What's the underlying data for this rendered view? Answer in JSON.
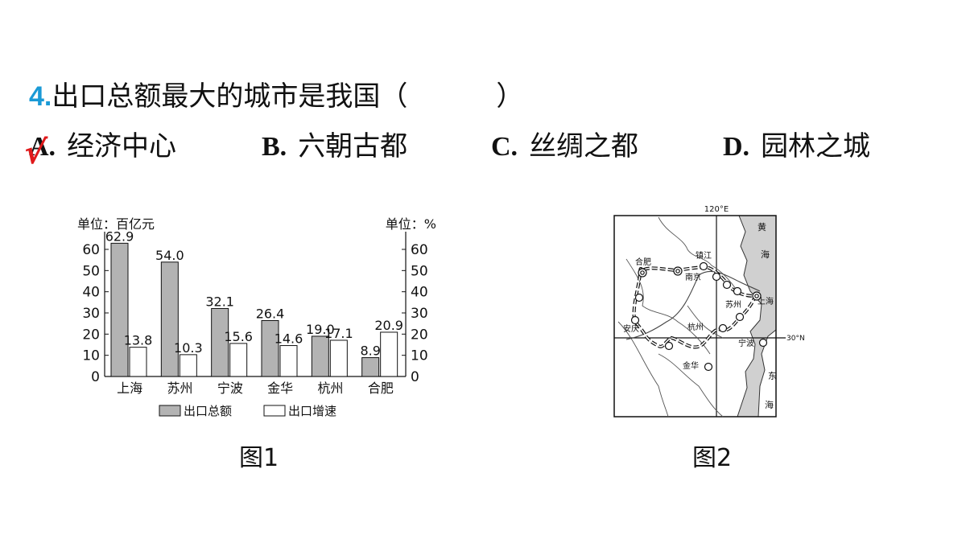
{
  "question": {
    "number": "4.",
    "text": "出口总额最大的城市是我国（",
    "close": "）"
  },
  "options": [
    {
      "letter": "A.",
      "text": "经济中心"
    },
    {
      "letter": "B.",
      "text": "六朝古都"
    },
    {
      "letter": "C.",
      "text": "丝绸之都"
    },
    {
      "letter": "D.",
      "text": "园林之城"
    }
  ],
  "answer_mark": "√",
  "chart_data": {
    "type": "bar",
    "categories": [
      "上海",
      "苏州",
      "宁波",
      "金华",
      "杭州",
      "合肥"
    ],
    "series": [
      {
        "name": "出口总额",
        "values": [
          62.9,
          54.0,
          32.1,
          26.4,
          19.0,
          8.9
        ],
        "color": "#b3b3b3"
      },
      {
        "name": "出口增速",
        "values": [
          13.8,
          10.3,
          15.6,
          14.6,
          17.1,
          20.9
        ],
        "color": "#ffffff"
      }
    ],
    "ylabel_left": "单位：百亿元",
    "ylabel_right": "单位：%",
    "ylim": [
      0,
      60
    ],
    "ytick_values": [
      0,
      10,
      20,
      30,
      40,
      50,
      60
    ],
    "grid": false,
    "legend": "bottom"
  },
  "figure1_caption": "图1",
  "figure2_caption": "图2",
  "map": {
    "longitude_label": "120°E",
    "latitude_label": "30°N",
    "sea_labels": [
      "黄",
      "海",
      "东",
      "海"
    ],
    "cities": [
      "合肥",
      "南京",
      "镇江",
      "苏州",
      "上海",
      "杭州",
      "安庆",
      "宁波",
      "金华"
    ]
  }
}
